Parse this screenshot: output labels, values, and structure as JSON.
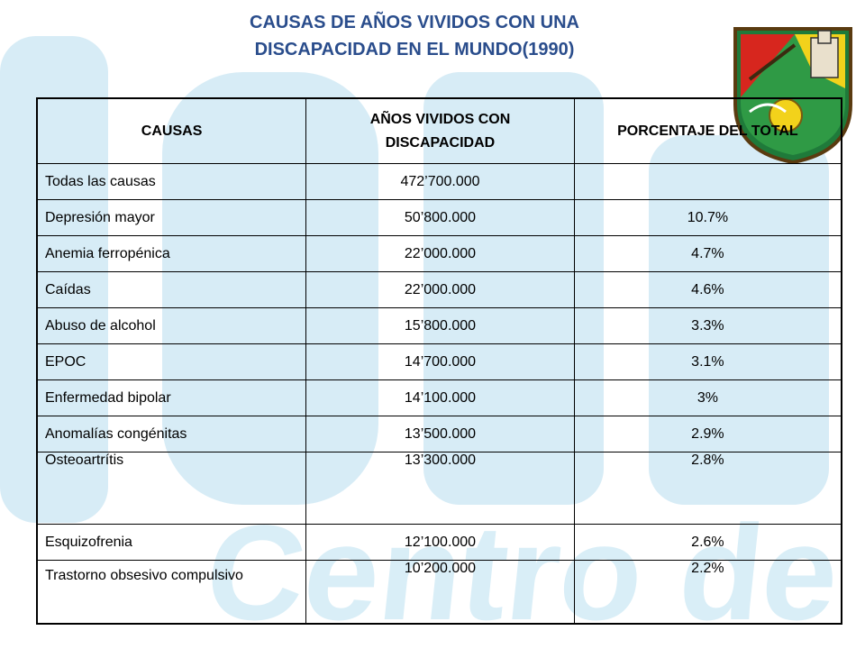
{
  "title": {
    "line1": "CAUSAS DE AÑOS VIVIDOS CON UNA",
    "line2": "DISCAPACIDAD EN EL MUNDO(1990)"
  },
  "watermark": {
    "text": "Centro de Salud Mental"
  },
  "table": {
    "headers": [
      "CAUSAS",
      "AÑOS VIVIDOS CON DISCAPACIDAD",
      "PORCENTAJE DEL TOTAL"
    ],
    "rows": [
      {
        "cause": "Todas las causas",
        "years": "472’700.000",
        "percent": ""
      },
      {
        "cause": "Depresión mayor",
        "years": "50’800.000",
        "percent": "10.7%"
      },
      {
        "cause": "Anemia ferropénica",
        "years": "22’000.000",
        "percent": "4.7%"
      },
      {
        "cause": "Caídas",
        "years": "22’000.000",
        "percent": "4.6%"
      },
      {
        "cause": "Abuso de alcohol",
        "years": "15’800.000",
        "percent": "3.3%"
      },
      {
        "cause": "EPOC",
        "years": "14’700.000",
        "percent": "3.1%"
      },
      {
        "cause": "Enfermedad bipolar",
        "years": "14’100.000",
        "percent": "3%"
      },
      {
        "cause": "Anomalías congénitas",
        "years": "13’500.000",
        "percent": "2.9%"
      },
      {
        "cause": "Osteoartrítis",
        "years": "13’300.000",
        "percent": "2.8%"
      },
      {
        "cause": "Esquizofrenia",
        "years": "12’100.000",
        "percent": "2.6%"
      },
      {
        "cause": "Trastorno obsesivo compulsivo",
        "years": "10’200.000",
        "percent": "2.2%"
      }
    ]
  },
  "colors": {
    "title": "#2a4d8c",
    "watermark": "#d7ecf6"
  }
}
